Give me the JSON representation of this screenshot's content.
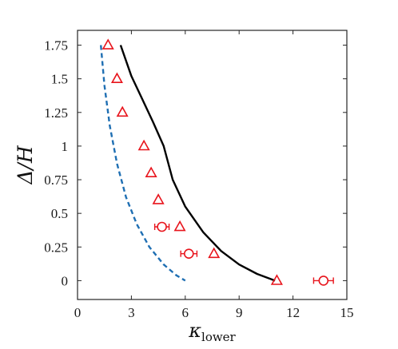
{
  "chart_data": {
    "type": "scatter",
    "xlabel": "κ",
    "xlabel_subscript": "lower",
    "ylabel": "Δ/H",
    "xlim": [
      0,
      15
    ],
    "ylim": [
      -0.14,
      1.86
    ],
    "xticks": [
      "0",
      "3",
      "6",
      "9",
      "12",
      "15"
    ],
    "yticks": [
      "0",
      "0.25",
      "0.5",
      "0.75",
      "1",
      "1.25",
      "1.5",
      "1.75"
    ],
    "grid": false,
    "series": [
      {
        "type": "line",
        "style": "solid",
        "color": "#000000",
        "x": [
          2.4,
          3.0,
          3.6,
          4.2,
          4.8,
          5.3,
          6.0,
          7.0,
          8.0,
          9.0,
          10.0,
          11.0
        ],
        "y": [
          1.75,
          1.52,
          1.35,
          1.18,
          1.0,
          0.75,
          0.55,
          0.36,
          0.22,
          0.12,
          0.05,
          0.0
        ]
      },
      {
        "type": "line",
        "style": "dashed",
        "color": "#1f6fb3",
        "x": [
          1.3,
          1.5,
          1.8,
          2.2,
          2.7,
          3.3,
          4.0,
          4.8,
          5.5,
          6.0
        ],
        "y": [
          1.75,
          1.45,
          1.15,
          0.87,
          0.62,
          0.42,
          0.25,
          0.12,
          0.04,
          0.0
        ]
      },
      {
        "type": "scatter",
        "marker": "triangle",
        "color": "#e8141c",
        "x": [
          1.7,
          2.2,
          2.5,
          3.7,
          4.1,
          4.5,
          5.7,
          7.6,
          11.1
        ],
        "y": [
          1.75,
          1.5,
          1.25,
          1.0,
          0.8,
          0.6,
          0.4,
          0.2,
          0.0
        ]
      },
      {
        "type": "scatter",
        "marker": "circle",
        "color": "#e8141c",
        "x": [
          4.7,
          6.2,
          13.7
        ],
        "y": [
          0.4,
          0.2,
          0.0
        ],
        "xerr": [
          0.4,
          0.45,
          0.55
        ]
      }
    ]
  }
}
